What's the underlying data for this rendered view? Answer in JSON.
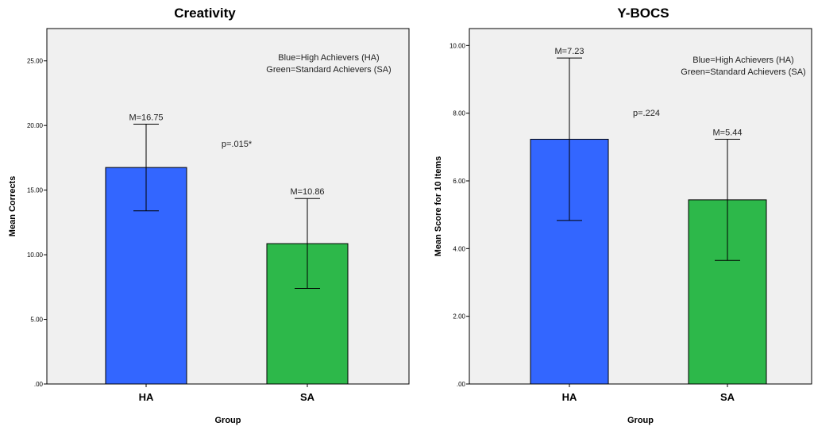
{
  "chart_data": [
    {
      "type": "bar",
      "title": "Creativity",
      "xlabel": "Group",
      "ylabel": "Mean Corrects",
      "categories": [
        "HA",
        "SA"
      ],
      "values": [
        16.75,
        10.86
      ],
      "error_bars": [
        [
          13.4,
          20.1
        ],
        [
          7.4,
          14.35
        ]
      ],
      "ylim": [
        0,
        27.5
      ],
      "yticks": [
        0,
        5,
        10,
        15,
        20,
        25
      ],
      "ytick_labels": [
        ".00",
        "5.00",
        "10.00",
        "15.00",
        "20.00",
        "25.00"
      ],
      "value_labels": [
        "M=16.75",
        "M=10.86"
      ],
      "bar_colors": [
        "#3366ff",
        "#2db84a"
      ],
      "plot_background": "#f0f0f0",
      "grid": false,
      "annotations": {
        "p_value": "p=.015*",
        "legend_line1": "Blue=High Achievers (HA)",
        "legend_line2": "Green=Standard Achievers (SA)"
      }
    },
    {
      "type": "bar",
      "title": "Y-BOCS",
      "xlabel": "Group",
      "ylabel": "Mean Score for 10 Items",
      "categories": [
        "HA",
        "SA"
      ],
      "values": [
        7.23,
        5.44
      ],
      "error_bars": [
        [
          4.83,
          9.63
        ],
        [
          3.65,
          7.23
        ]
      ],
      "ylim": [
        0,
        10.5
      ],
      "yticks": [
        0,
        2,
        4,
        6,
        8,
        10
      ],
      "ytick_labels": [
        ".00",
        "2.00",
        "4.00",
        "6.00",
        "8.00",
        "10.00"
      ],
      "value_labels": [
        "M=7.23",
        "M=5.44"
      ],
      "bar_colors": [
        "#3366ff",
        "#2db84a"
      ],
      "plot_background": "#f0f0f0",
      "grid": false,
      "annotations": {
        "p_value": "p=.224",
        "legend_line1": "Blue=High Achievers (HA)",
        "legend_line2": "Green=Standard Achievers (SA)"
      }
    }
  ]
}
